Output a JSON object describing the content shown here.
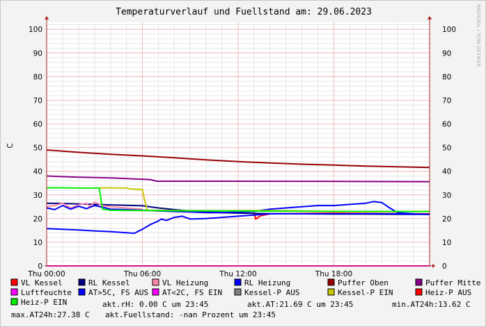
{
  "chart_data": {
    "type": "line",
    "title": "Temperaturverlauf und Fuellstand am: 29.06.2023",
    "ylabel": "C",
    "watermark": "RRDTOOL / TOBI OETIKER",
    "ylim": [
      0,
      103
    ],
    "y_ticks": [
      0,
      10,
      20,
      30,
      40,
      50,
      60,
      70,
      80,
      90,
      100
    ],
    "xlim_hours": [
      0,
      24
    ],
    "x_ticks": [
      {
        "label": "Thu 00:00",
        "hour": 0
      },
      {
        "label": "Thu 06:00",
        "hour": 6
      },
      {
        "label": "Thu 12:00",
        "hour": 12
      },
      {
        "label": "Thu 18:00",
        "hour": 18
      }
    ],
    "colors": {
      "background": "#f3f3f3",
      "canvas": "#ffffff",
      "grid_minor": "#e6e6e6",
      "grid_major": "#f2b9b9",
      "axis": "#aa2020"
    },
    "series": [
      {
        "name": "VL Kessel",
        "color": "#ff0000",
        "x": [
          0,
          13.0,
          13.1,
          13.4,
          14,
          18,
          24
        ],
        "y": [
          null,
          22.5,
          19.8,
          21.2,
          22.0,
          22.3,
          22.0
        ]
      },
      {
        "name": "RL Kessel",
        "color": "#000080",
        "x": [
          0,
          1,
          2,
          3,
          4,
          5,
          6,
          7,
          8,
          9,
          10,
          11,
          12,
          14,
          16,
          18,
          20,
          22,
          24
        ],
        "y": [
          26.5,
          26.4,
          26.2,
          26.0,
          25.8,
          25.6,
          25.4,
          24.5,
          23.8,
          23.2,
          22.8,
          22.5,
          22.3,
          22.1,
          22.0,
          21.9,
          21.9,
          21.8,
          21.8
        ]
      },
      {
        "name": "VL Heizung",
        "color": "#ff88aa",
        "x": [
          0,
          0.5,
          1.0,
          1.5,
          2.0,
          2.5,
          2.7,
          3.0,
          3.5,
          4.0,
          5.0,
          6.0
        ],
        "y": [
          25.0,
          25.5,
          26.5,
          24.5,
          25.8,
          26.5,
          25.0,
          27.0,
          25.5,
          25.0,
          24.5,
          24.0
        ]
      },
      {
        "name": "RL Heizung",
        "color": "#0000ff",
        "x": [
          0,
          0.5,
          1,
          1.5,
          2,
          2.5,
          3,
          3.5,
          4,
          5,
          6,
          7,
          8,
          9,
          10,
          11,
          12,
          13,
          14,
          15,
          16,
          17,
          18,
          19,
          20,
          20.5,
          21,
          21.5,
          22,
          23,
          24
        ],
        "y": [
          24.5,
          23.8,
          25.5,
          24.0,
          25.2,
          24.2,
          25.5,
          24.8,
          24.0,
          23.8,
          23.5,
          23.2,
          23.0,
          22.8,
          22.5,
          22.5,
          22.8,
          23.0,
          24.0,
          24.5,
          25.0,
          25.5,
          25.5,
          26.0,
          26.5,
          27.2,
          26.8,
          24.5,
          22.5,
          22.0,
          21.8
        ]
      },
      {
        "name": "Puffer Oben",
        "color": "#990000",
        "x": [
          0,
          2,
          4,
          6,
          8,
          10,
          12,
          14,
          16,
          18,
          20,
          22,
          24
        ],
        "y": [
          49.0,
          48.0,
          47.2,
          46.5,
          45.7,
          44.8,
          44.1,
          43.5,
          43.0,
          42.6,
          42.2,
          41.9,
          41.6
        ]
      },
      {
        "name": "Puffer Mitte",
        "color": "#880088",
        "x": [
          0,
          2,
          4,
          6.5,
          6.9,
          12,
          18,
          24
        ],
        "y": [
          38.0,
          37.5,
          37.2,
          36.5,
          35.8,
          35.8,
          35.7,
          35.6
        ]
      },
      {
        "name": "Luftfeuchte",
        "color": "#ff00ff",
        "x": [
          0,
          24
        ],
        "y": [
          0.0,
          0.0
        ]
      },
      {
        "name": "AT>5C, FS AUS",
        "color": "#0000ff",
        "x": [
          0,
          1,
          2,
          3,
          4,
          5,
          5.5,
          6,
          6.5,
          7.0,
          7.2,
          7.5,
          8.0,
          8.5,
          9,
          10,
          11,
          12,
          13,
          14,
          16,
          18,
          20,
          22,
          24
        ],
        "y": [
          15.8,
          15.5,
          15.2,
          14.8,
          14.5,
          14.0,
          13.8,
          15.5,
          17.5,
          19.0,
          19.8,
          19.2,
          20.5,
          21.0,
          19.8,
          20.0,
          20.5,
          21.0,
          21.5,
          22.0,
          22.0,
          22.0,
          22.0,
          22.0,
          21.8
        ]
      },
      {
        "name": "AT<2C, FS EIN",
        "color": "#ff00ff",
        "x": [],
        "y": []
      },
      {
        "name": "Kessel-P AUS",
        "color": "#808080",
        "x": [],
        "y": []
      },
      {
        "name": "Kessel-P EIN",
        "color": "#c8c800",
        "x": [
          0,
          3.3,
          3.4,
          5.0,
          5.3,
          6.0,
          6.1,
          6.3,
          10,
          14,
          18,
          24
        ],
        "y": [
          null,
          32.8,
          33.0,
          32.9,
          32.5,
          32.3,
          29.0,
          23.5,
          23.3,
          23.4,
          23.0,
          23.0
        ]
      },
      {
        "name": "Heiz-P AUS",
        "color": "#ff0000",
        "x": [],
        "y": []
      },
      {
        "name": "Heiz-P EIN",
        "color": "#00ee00",
        "x": [
          0,
          1,
          2,
          3,
          3.3,
          3.5,
          4,
          6,
          8,
          12,
          16,
          20,
          24
        ],
        "y": [
          33.0,
          33.0,
          32.9,
          32.9,
          32.9,
          24.0,
          23.5,
          23.4,
          23.3,
          23.2,
          23.1,
          23.0,
          23.0
        ]
      }
    ],
    "legend": [
      {
        "label": "VL Kessel",
        "color": "#ff0000"
      },
      {
        "label": "RL Kessel",
        "color": "#000080"
      },
      {
        "label": "VL Heizung",
        "color": "#ff88aa"
      },
      {
        "label": "RL Heizung",
        "color": "#0000ff"
      },
      {
        "label": "Puffer Oben",
        "color": "#990000"
      },
      {
        "label": "Puffer Mitte",
        "color": "#880088"
      },
      {
        "label": "Luftfeuchte",
        "color": "#ff00ff"
      },
      {
        "label": "AT>5C, FS AUS",
        "color": "#0000ff"
      },
      {
        "label": "AT<2C, FS EIN",
        "color": "#ff00ff"
      },
      {
        "label": "Kessel-P AUS",
        "color": "#808080"
      },
      {
        "label": "Kessel-P EIN",
        "color": "#c8c800"
      },
      {
        "label": "Heiz-P AUS",
        "color": "#ff0000"
      },
      {
        "label": "Heiz-P EIN",
        "color": "#00ee00"
      }
    ],
    "status": {
      "rh": "akt.rH: 0.00 C um 23:45",
      "at": "akt.AT:21.69 C um 23:45",
      "min_at": "min.AT24h:13.62 C",
      "max_at": "max.AT24h:27.38 C",
      "fuellstand": "akt.Fuellstand: -nan Prozent um 23:45"
    }
  }
}
